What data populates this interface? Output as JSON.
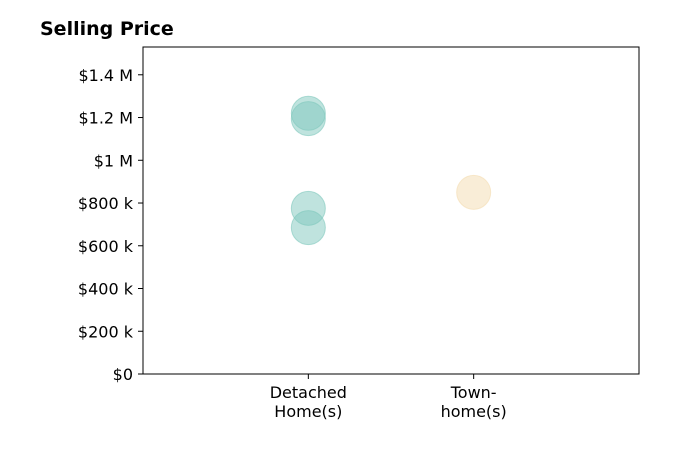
{
  "chart_data": {
    "type": "scatter",
    "title": "Selling Price",
    "xlabel": "",
    "ylabel": "",
    "categories": [
      [
        "Detached",
        "Home(s)"
      ],
      [
        "Town-",
        "home(s)"
      ]
    ],
    "y_ticks": [
      {
        "value": 0,
        "label": "$0"
      },
      {
        "value": 200000,
        "label": "$200 k"
      },
      {
        "value": 400000,
        "label": "$400 k"
      },
      {
        "value": 600000,
        "label": "$600 k"
      },
      {
        "value": 800000,
        "label": "$800 k"
      },
      {
        "value": 1000000,
        "label": "$1 M"
      },
      {
        "value": 1200000,
        "label": "$1.2 M"
      },
      {
        "value": 1400000,
        "label": "$1.4 M"
      }
    ],
    "ylim": [
      0,
      1530000
    ],
    "xlim": [
      -1,
      2
    ],
    "grid": false,
    "series": [
      {
        "category_index": 0,
        "color": "#7fc8bd",
        "values": [
          1220000,
          1195000,
          775000,
          685000
        ]
      },
      {
        "category_index": 1,
        "color": "#f3dcb0",
        "values": [
          850000
        ]
      }
    ]
  }
}
